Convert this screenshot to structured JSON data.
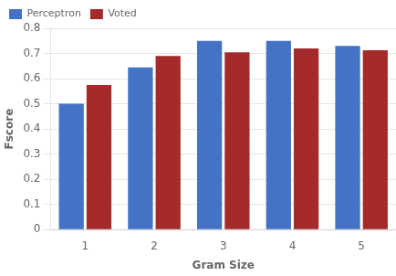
{
  "chart_data": {
    "type": "bar",
    "categories": [
      1,
      2,
      3,
      4,
      5
    ],
    "series": [
      {
        "name": "Perceptron",
        "color": "#4472C4",
        "values": [
          0.5,
          0.645,
          0.75,
          0.75,
          0.73
        ]
      },
      {
        "name": "Voted",
        "color": "#A52A2A",
        "values": [
          0.575,
          0.69,
          0.705,
          0.72,
          0.713
        ]
      }
    ],
    "xlabel": "Gram Size",
    "ylabel": "Fscore",
    "ylim": [
      0,
      0.8
    ],
    "yticks": [
      0,
      0.1,
      0.2,
      0.3,
      0.4,
      0.5,
      0.6,
      0.7,
      0.8
    ],
    "grid": true,
    "legend": "upper left"
  }
}
